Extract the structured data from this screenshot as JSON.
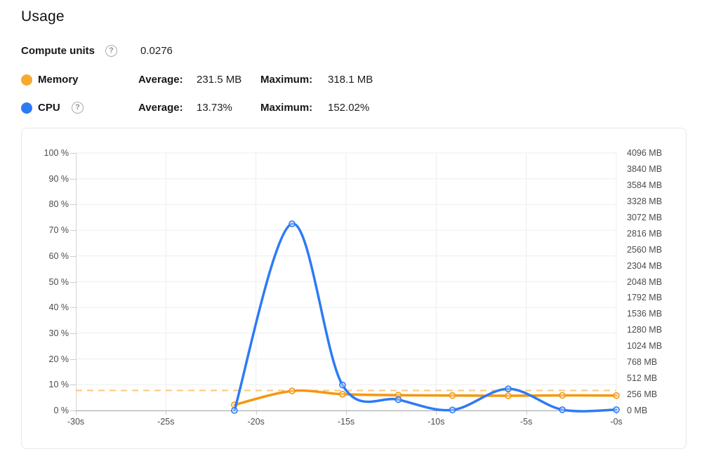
{
  "header": {
    "title": "Usage",
    "compute_units": {
      "label": "Compute units",
      "value": "0.0276",
      "help_icon": "?"
    },
    "legend": [
      {
        "name": "Memory",
        "dot_color": "#F8A930",
        "average_label": "Average:",
        "average_value": "231.5 MB",
        "maximum_label": "Maximum:",
        "maximum_value": "318.1 MB"
      },
      {
        "name": "CPU",
        "dot_color": "#2C7BF6",
        "help_icon": "?",
        "average_label": "Average:",
        "average_value": "13.73%",
        "maximum_label": "Maximum:",
        "maximum_value": "152.02%"
      }
    ]
  },
  "chart_data": {
    "type": "line",
    "x_unit": "seconds (relative)",
    "xlim": [
      -30,
      0
    ],
    "x_tick_values": [
      -30,
      -25,
      -20,
      -15,
      -10,
      -5,
      0
    ],
    "x_tick_labels": [
      "-30s",
      "-25s",
      "-20s",
      "-15s",
      "-10s",
      "-5s",
      "-0s"
    ],
    "left_axis": {
      "title": "CPU %",
      "min": 0,
      "max": 100,
      "tick_labels": [
        "100 %",
        "90 %",
        "80 %",
        "70 %",
        "60 %",
        "50 %",
        "40 %",
        "30 %",
        "20 %",
        "10 %",
        "0 %"
      ]
    },
    "right_axis": {
      "title": "Memory MB",
      "min": 0,
      "max": 4096,
      "tick_labels": [
        "4096 MB",
        "3840 MB",
        "3584 MB",
        "3328 MB",
        "3072 MB",
        "2816 MB",
        "2560 MB",
        "2304 MB",
        "2048 MB",
        "1792 MB",
        "1536 MB",
        "1280 MB",
        "1024 MB",
        "768 MB",
        "512 MB",
        "256 MB",
        "0 MB"
      ]
    },
    "x": [
      -21.2,
      -18,
      -15.2,
      -12.1,
      -9.1,
      -6,
      -3,
      0
    ],
    "series": [
      {
        "name": "Memory",
        "axis": "right",
        "color": "#F5970F",
        "values_mb": [
          89,
          310,
          259,
          243,
          238,
          234,
          240,
          237
        ]
      },
      {
        "name": "CPU",
        "axis": "left",
        "color": "#2C7BF6",
        "values_pct": [
          0,
          72.5,
          9.9,
          4.2,
          0.2,
          8.4,
          0.3,
          0.3
        ]
      }
    ],
    "reference_line": {
      "name": "memory-maximum",
      "axis": "right",
      "value": 318.1,
      "color": "#F9C57C",
      "style": "dashed"
    },
    "grid": true,
    "legend_position": "above-chart"
  }
}
